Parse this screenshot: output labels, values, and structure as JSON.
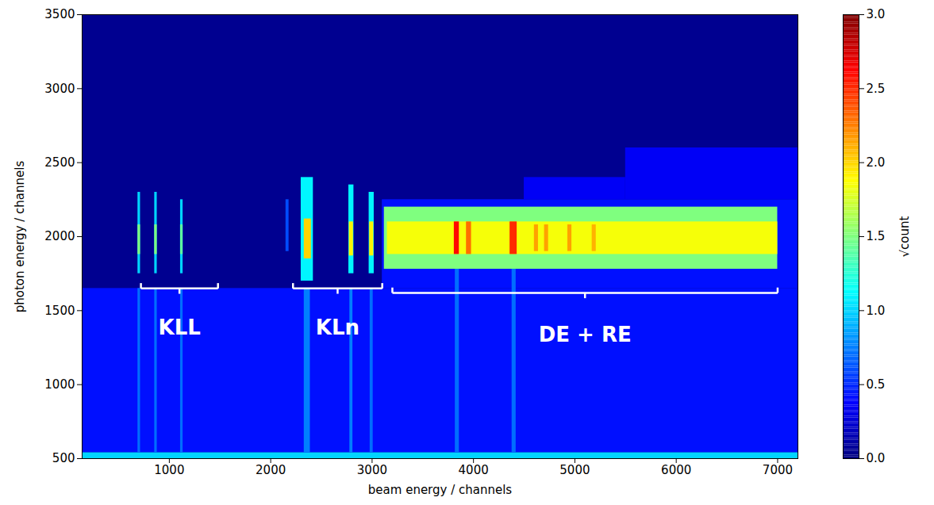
{
  "chart_data": {
    "type": "heatmap",
    "x_label": "beam energy / channels",
    "y_label": "photon energy / channels",
    "xlim": [
      140,
      7200
    ],
    "ylim": [
      500,
      3500
    ],
    "xticks": [
      1000,
      2000,
      3000,
      4000,
      5000,
      6000,
      7000
    ],
    "yticks": [
      500,
      1000,
      1500,
      2000,
      2500,
      3000,
      3500
    ],
    "colorbar": {
      "label": "√count",
      "lim": [
        0,
        3
      ],
      "ticks": [
        {
          "value": 0,
          "label": "0.0"
        },
        {
          "value": 0.5,
          "label": "0.5"
        },
        {
          "value": 1,
          "label": "1.0"
        },
        {
          "value": 1.5,
          "label": "1.5"
        },
        {
          "value": 2,
          "label": "2.0"
        },
        {
          "value": 2.5,
          "label": "2.5"
        },
        {
          "value": 3,
          "label": "3.0"
        }
      ]
    },
    "cells": [
      {
        "x1": 140,
        "x2": 7200,
        "y1": 500,
        "y2": 3500,
        "value": 0.05
      },
      {
        "x1": 140,
        "x2": 7200,
        "y1": 540,
        "y2": 1650,
        "value": 0.42
      },
      {
        "x1": 140,
        "x2": 7200,
        "y1": 500,
        "y2": 540,
        "value": 1.0
      },
      {
        "x1": 3100,
        "x2": 7200,
        "y1": 1650,
        "y2": 2250,
        "value": 0.42
      },
      {
        "x1": 4500,
        "x2": 5500,
        "y1": 2250,
        "y2": 2400,
        "value": 0.35
      },
      {
        "x1": 5500,
        "x2": 7200,
        "y1": 2250,
        "y2": 2600,
        "value": 0.35
      },
      {
        "x1": 690,
        "x2": 715,
        "y1": 540,
        "y2": 1650,
        "value": 0.7
      },
      {
        "x1": 855,
        "x2": 880,
        "y1": 540,
        "y2": 1650,
        "value": 0.7
      },
      {
        "x1": 1110,
        "x2": 1135,
        "y1": 540,
        "y2": 1650,
        "value": 0.7
      },
      {
        "x1": 2330,
        "x2": 2390,
        "y1": 540,
        "y2": 1650,
        "value": 0.75
      },
      {
        "x1": 2780,
        "x2": 2810,
        "y1": 540,
        "y2": 1650,
        "value": 0.75
      },
      {
        "x1": 2980,
        "x2": 3010,
        "y1": 540,
        "y2": 1650,
        "value": 0.7
      },
      {
        "x1": 3820,
        "x2": 3860,
        "y1": 540,
        "y2": 1780,
        "value": 0.7
      },
      {
        "x1": 4380,
        "x2": 4420,
        "y1": 540,
        "y2": 1780,
        "value": 0.7
      },
      {
        "x1": 690,
        "x2": 715,
        "y1": 1750,
        "y2": 2300,
        "value": 1.0
      },
      {
        "x1": 690,
        "x2": 715,
        "y1": 1880,
        "y2": 2080,
        "value": 1.5
      },
      {
        "x1": 855,
        "x2": 880,
        "y1": 1750,
        "y2": 2300,
        "value": 1.0
      },
      {
        "x1": 855,
        "x2": 880,
        "y1": 1880,
        "y2": 2080,
        "value": 1.5
      },
      {
        "x1": 1110,
        "x2": 1135,
        "y1": 1750,
        "y2": 2250,
        "value": 1.0
      },
      {
        "x1": 1110,
        "x2": 1135,
        "y1": 1880,
        "y2": 2080,
        "value": 1.4
      },
      {
        "x1": 2150,
        "x2": 2180,
        "y1": 1900,
        "y2": 2250,
        "value": 0.6
      },
      {
        "x1": 2300,
        "x2": 2420,
        "y1": 1700,
        "y2": 2400,
        "value": 1.1
      },
      {
        "x1": 2330,
        "x2": 2400,
        "y1": 1850,
        "y2": 2120,
        "value": 2.0
      },
      {
        "x1": 2770,
        "x2": 2820,
        "y1": 1750,
        "y2": 2350,
        "value": 1.1
      },
      {
        "x1": 2775,
        "x2": 2815,
        "y1": 1870,
        "y2": 2100,
        "value": 1.9
      },
      {
        "x1": 2970,
        "x2": 3020,
        "y1": 1750,
        "y2": 2300,
        "value": 1.1
      },
      {
        "x1": 2975,
        "x2": 3015,
        "y1": 1870,
        "y2": 2100,
        "value": 1.9
      },
      {
        "x1": 3120,
        "x2": 7000,
        "y1": 1780,
        "y2": 2200,
        "value": 1.5
      },
      {
        "x1": 3150,
        "x2": 7000,
        "y1": 1880,
        "y2": 2100,
        "value": 1.85
      },
      {
        "x1": 3810,
        "x2": 3860,
        "y1": 1880,
        "y2": 2100,
        "value": 2.6
      },
      {
        "x1": 3930,
        "x2": 3980,
        "y1": 1880,
        "y2": 2100,
        "value": 2.3
      },
      {
        "x1": 4360,
        "x2": 4430,
        "y1": 1880,
        "y2": 2100,
        "value": 2.5
      },
      {
        "x1": 4600,
        "x2": 4640,
        "y1": 1900,
        "y2": 2080,
        "value": 2.15
      },
      {
        "x1": 4700,
        "x2": 4740,
        "y1": 1900,
        "y2": 2080,
        "value": 2.15
      },
      {
        "x1": 4930,
        "x2": 4970,
        "y1": 1900,
        "y2": 2080,
        "value": 2.15
      },
      {
        "x1": 5170,
        "x2": 5210,
        "y1": 1900,
        "y2": 2080,
        "value": 2.1
      }
    ],
    "annotations": [
      {
        "text": "KLL",
        "x1": 720,
        "x2": 1480,
        "y": 1650,
        "text_y": 1384
      },
      {
        "text": "KLn",
        "x1": 2220,
        "x2": 3100,
        "y": 1650,
        "text_y": 1384
      },
      {
        "text": "DE + RE",
        "x1": 3200,
        "x2": 7000,
        "y": 1620,
        "text_y": 1336
      }
    ]
  }
}
